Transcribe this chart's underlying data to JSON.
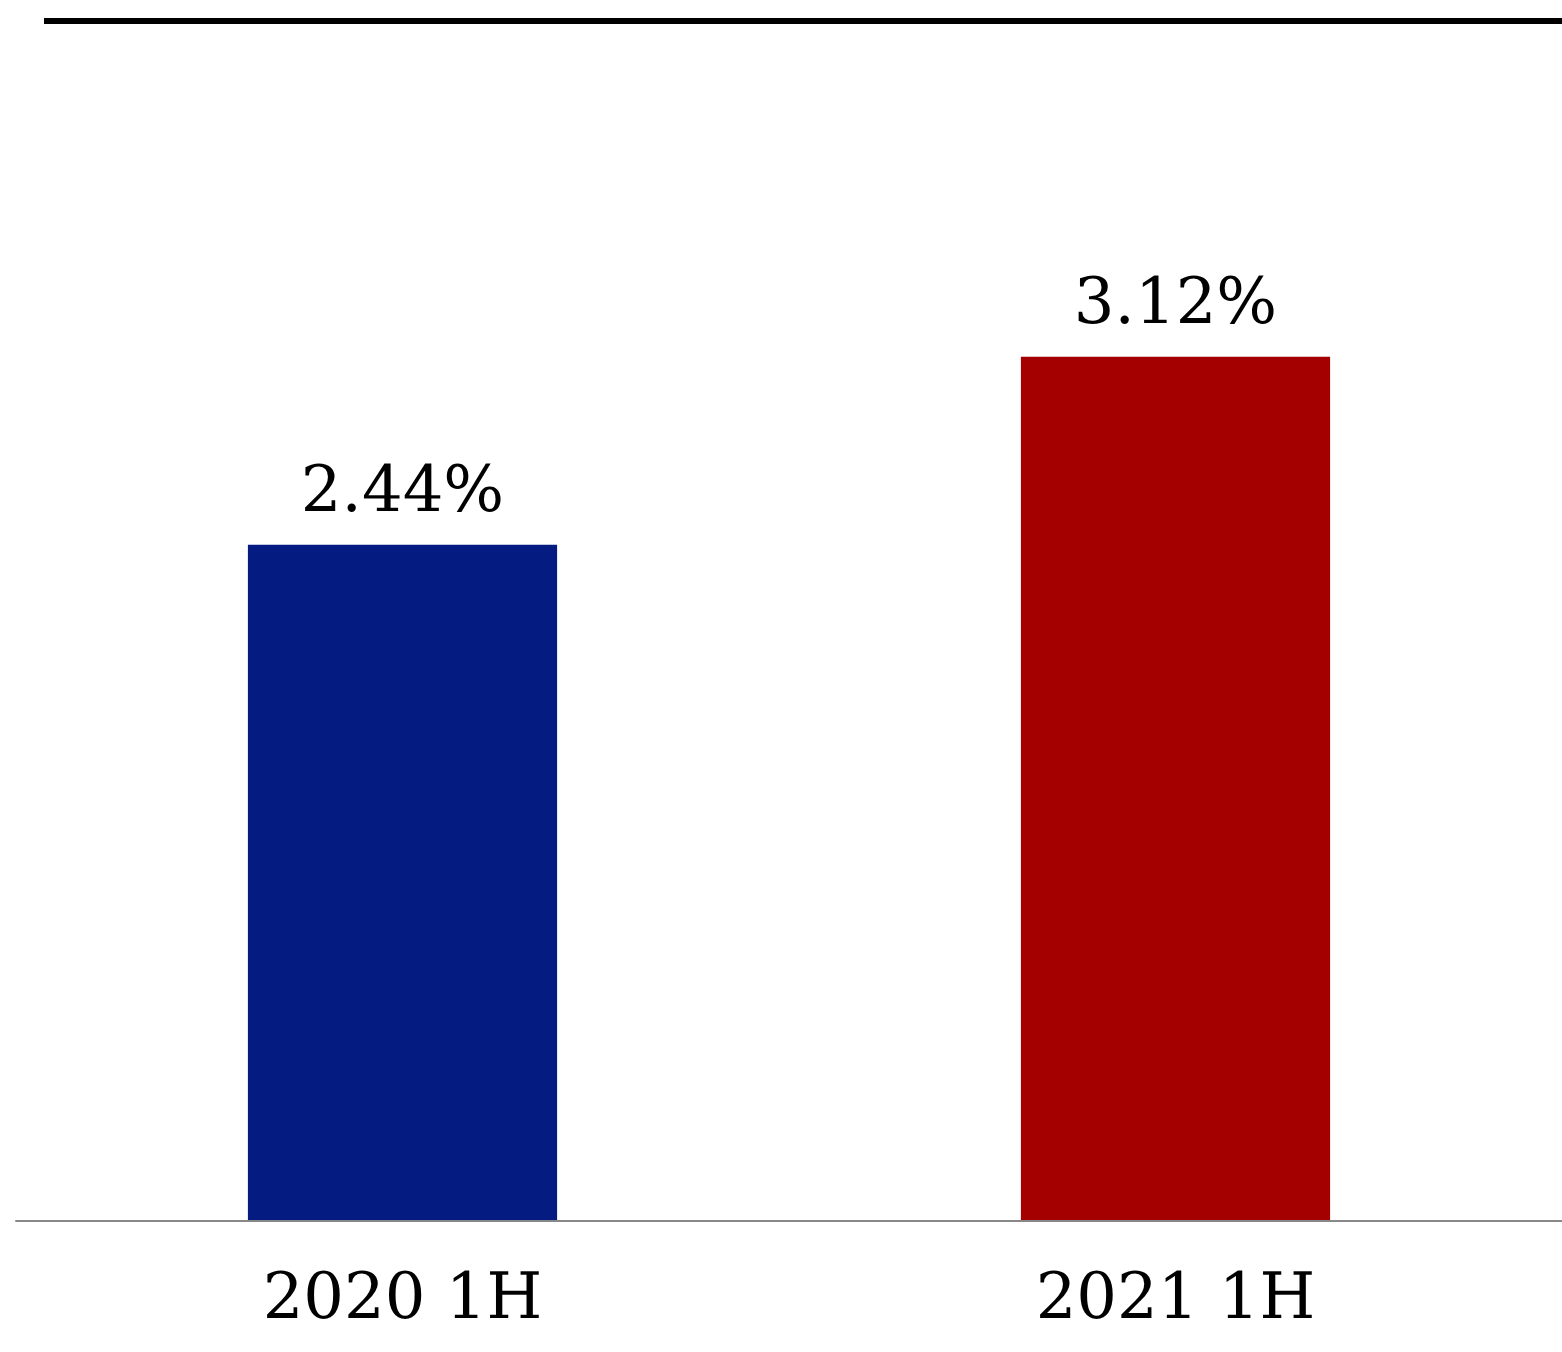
{
  "chart_data": {
    "type": "bar",
    "categories": [
      "2020 1H",
      "2021 1H"
    ],
    "values": [
      2.44,
      3.12
    ],
    "colors": [
      "#041c82",
      "#a50000"
    ],
    "value_labels": [
      "2.44%",
      "3.12%"
    ]
  }
}
